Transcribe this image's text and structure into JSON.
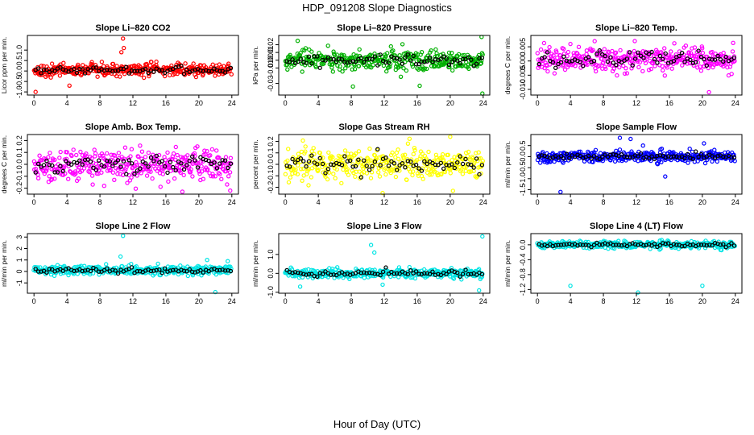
{
  "page_title": "HDP_091208  Slope Diagnostics",
  "x_axis_title": "Hour of Day (UTC)",
  "chart_data": [
    {
      "type": "scatter",
      "id": "li820-co2",
      "title": "Slope Li–820 CO2",
      "ylabel": "Licor ppm per min.",
      "color": "#ff0000",
      "ylim": [
        -1.15,
        1.7
      ],
      "yticks": [
        -1.0,
        -0.5,
        0.0,
        0.5,
        1.0
      ],
      "ytick_labels": [
        "-1.0",
        "-0.5",
        "0.0",
        "0.5",
        "1.0"
      ],
      "xlim": [
        -0.8,
        24.8
      ],
      "xticks": [
        0,
        4,
        8,
        12,
        16,
        20,
        24
      ],
      "xtick_labels": [
        "0",
        "4",
        "8",
        "12",
        "16",
        "20",
        "24"
      ],
      "mean": 0.05,
      "spread": 0.18,
      "outliers": [
        [
          10.8,
          1.55
        ],
        [
          10.9,
          1.1
        ],
        [
          0.2,
          -1.0
        ],
        [
          4.3,
          -0.7
        ],
        [
          10.6,
          0.9
        ]
      ]
    },
    {
      "type": "scatter",
      "id": "li820-pressure",
      "title": "Slope Li–820 Pressure",
      "ylabel": "kPa per min.",
      "color": "#00b000",
      "ylim": [
        -0.045,
        0.032
      ],
      "yticks": [
        -0.03,
        -0.01,
        0.0,
        0.01,
        0.02
      ],
      "ytick_labels": [
        "-0.03",
        "-0.01",
        "0.00",
        "0.01",
        "0.02"
      ],
      "xlim": [
        -0.8,
        24.8
      ],
      "xticks": [
        0,
        4,
        8,
        12,
        16,
        20,
        24
      ],
      "xtick_labels": [
        "0",
        "4",
        "8",
        "12",
        "16",
        "20",
        "24"
      ],
      "mean": 0.0,
      "spread": 0.008,
      "outliers": [
        [
          23.8,
          0.03
        ],
        [
          23.9,
          -0.043
        ],
        [
          16.3,
          -0.033
        ],
        [
          8.2,
          -0.034
        ],
        [
          1.5,
          0.025
        ]
      ]
    },
    {
      "type": "scatter",
      "id": "li820-temp",
      "title": "Slope Li–820 Temp.",
      "ylabel": "degrees C per min.",
      "color": "#ff00ff",
      "ylim": [
        -0.012,
        0.009
      ],
      "yticks": [
        -0.01,
        -0.005,
        0.0,
        0.005
      ],
      "ytick_labels": [
        "-0.010",
        "-0.005",
        "0.000",
        "0.005"
      ],
      "xlim": [
        -0.8,
        24.8
      ],
      "xticks": [
        0,
        4,
        8,
        12,
        16,
        20,
        24
      ],
      "xtick_labels": [
        "0",
        "4",
        "8",
        "12",
        "16",
        "20",
        "24"
      ],
      "mean": 0.0005,
      "spread": 0.0028,
      "outliers": [
        [
          20.8,
          -0.011
        ],
        [
          4.0,
          0.006
        ],
        [
          11.8,
          0.007
        ]
      ]
    },
    {
      "type": "scatter",
      "id": "amb-box-temp",
      "title": "Slope Amb. Box Temp.",
      "ylabel": "degrees C per min.",
      "color": "#ff00ff",
      "ylim": [
        -0.25,
        0.25
      ],
      "yticks": [
        -0.2,
        -0.1,
        0.0,
        0.1,
        0.2
      ],
      "ytick_labels": [
        "-0.2",
        "-0.1",
        "0.0",
        "0.1",
        "0.2"
      ],
      "xlim": [
        -0.8,
        24.8
      ],
      "xticks": [
        0,
        4,
        8,
        12,
        16,
        20,
        24
      ],
      "xtick_labels": [
        "0",
        "4",
        "8",
        "12",
        "16",
        "20",
        "24"
      ],
      "mean": 0.0,
      "spread": 0.08,
      "outliers": [
        [
          23.8,
          -0.22
        ],
        [
          18.0,
          -0.23
        ]
      ]
    },
    {
      "type": "scatter",
      "id": "gas-stream-rh",
      "title": "Slope Gas Stream RH",
      "ylabel": "percent per min.",
      "color": "#ffff00",
      "ylim": [
        -0.26,
        0.26
      ],
      "yticks": [
        -0.2,
        -0.1,
        0.0,
        0.1,
        0.2
      ],
      "ytick_labels": [
        "-0.2",
        "-0.1",
        "0.0",
        "0.1",
        "0.2"
      ],
      "xlim": [
        -0.8,
        24.8
      ],
      "xticks": [
        0,
        4,
        8,
        12,
        16,
        20,
        24
      ],
      "xtick_labels": [
        "0",
        "4",
        "8",
        "12",
        "16",
        "20",
        "24"
      ],
      "mean": 0.0,
      "spread": 0.09,
      "outliers": [
        [
          11.8,
          -0.25
        ],
        [
          20.0,
          0.24
        ]
      ]
    },
    {
      "type": "scatter",
      "id": "sample-flow",
      "title": "Slope Sample Flow",
      "ylabel": "ml/min per min.",
      "color": "#0000ff",
      "ylim": [
        -1.7,
        1.0
      ],
      "yticks": [
        -1.5,
        -1.0,
        -0.5,
        0.0,
        0.5
      ],
      "ytick_labels": [
        "-1.5",
        "-1.0",
        "-0.5",
        "0.0",
        "0.5"
      ],
      "xlim": [
        -0.8,
        24.8
      ],
      "xticks": [
        0,
        4,
        8,
        12,
        16,
        20,
        24
      ],
      "xtick_labels": [
        "0",
        "4",
        "8",
        "12",
        "16",
        "20",
        "24"
      ],
      "mean": 0.0,
      "spread": 0.15,
      "outliers": [
        [
          2.8,
          -1.6
        ],
        [
          11.3,
          0.8
        ],
        [
          10.0,
          0.85
        ],
        [
          15.5,
          -0.9
        ],
        [
          20.2,
          0.6
        ],
        [
          12.8,
          0.5
        ]
      ]
    },
    {
      "type": "scatter",
      "id": "line2-flow",
      "title": "Slope Line 2 Flow",
      "ylabel": "ml/min per min.",
      "color": "#00e5e5",
      "ylim": [
        -1.9,
        3.3
      ],
      "yticks": [
        -1,
        0,
        1,
        2,
        3
      ],
      "ytick_labels": [
        "-1",
        "0",
        "1",
        "2",
        "3"
      ],
      "xlim": [
        -0.8,
        24.8
      ],
      "xticks": [
        0,
        4,
        8,
        12,
        16,
        20,
        24
      ],
      "xtick_labels": [
        "0",
        "4",
        "8",
        "12",
        "16",
        "20",
        "24"
      ],
      "mean": 0.1,
      "spread": 0.25,
      "outliers": [
        [
          10.8,
          3.1
        ],
        [
          10.5,
          1.3
        ],
        [
          22.0,
          -1.8
        ],
        [
          23.5,
          0.9
        ],
        [
          21.0,
          1.0
        ]
      ]
    },
    {
      "type": "scatter",
      "id": "line3-flow",
      "title": "Slope Line 3 Flow",
      "ylabel": "ml/min per min.",
      "color": "#00e5e5",
      "ylim": [
        -1.05,
        2.1
      ],
      "yticks": [
        -1.0,
        0.0,
        1.0
      ],
      "ytick_labels": [
        "-1.0",
        "0.0",
        "1.0"
      ],
      "xlim": [
        -0.8,
        24.8
      ],
      "xticks": [
        0,
        4,
        8,
        12,
        16,
        20,
        24
      ],
      "xtick_labels": [
        "0",
        "4",
        "8",
        "12",
        "16",
        "20",
        "24"
      ],
      "mean": 0.0,
      "spread": 0.15,
      "outliers": [
        [
          23.9,
          1.95
        ],
        [
          10.4,
          1.5
        ],
        [
          1.8,
          -0.7
        ],
        [
          11.8,
          -0.6
        ],
        [
          23.5,
          -0.9
        ],
        [
          10.8,
          1.1
        ]
      ]
    },
    {
      "type": "scatter",
      "id": "line4-flow",
      "title": "Slope Line 4 (LT) Flow",
      "ylabel": "ml/min per min.",
      "color": "#00e5e5",
      "ylim": [
        -1.3,
        0.3
      ],
      "yticks": [
        -1.2,
        -0.8,
        -0.4,
        0.0
      ],
      "ytick_labels": [
        "-1.2",
        "-0.8",
        "-0.4",
        "0.0"
      ],
      "xlim": [
        -0.8,
        24.8
      ],
      "xticks": [
        0,
        4,
        8,
        12,
        16,
        20,
        24
      ],
      "xtick_labels": [
        "0",
        "4",
        "8",
        "12",
        "16",
        "20",
        "24"
      ],
      "mean": 0.0,
      "spread": 0.06,
      "outliers": [
        [
          4.0,
          -1.1
        ],
        [
          12.2,
          -1.28
        ],
        [
          20.0,
          -1.1
        ]
      ]
    }
  ]
}
